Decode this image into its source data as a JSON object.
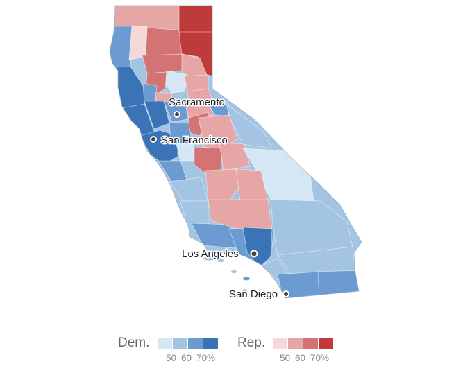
{
  "colors": {
    "dem": [
      "#d5e7f5",
      "#a4c4e4",
      "#6c9bd1",
      "#3a74b7"
    ],
    "rep": [
      "#f6d8d8",
      "#e6a6a6",
      "#d47373",
      "#bf3b3b"
    ]
  },
  "cities": [
    {
      "name": "Sacramento"
    },
    {
      "name": "San Francisco"
    },
    {
      "name": "Los Angeles"
    },
    {
      "name": "San Diego"
    }
  ],
  "legend": {
    "dem_label": "Dem.",
    "rep_label": "Rep.",
    "ticks": [
      "50",
      "60",
      "70%"
    ]
  }
}
